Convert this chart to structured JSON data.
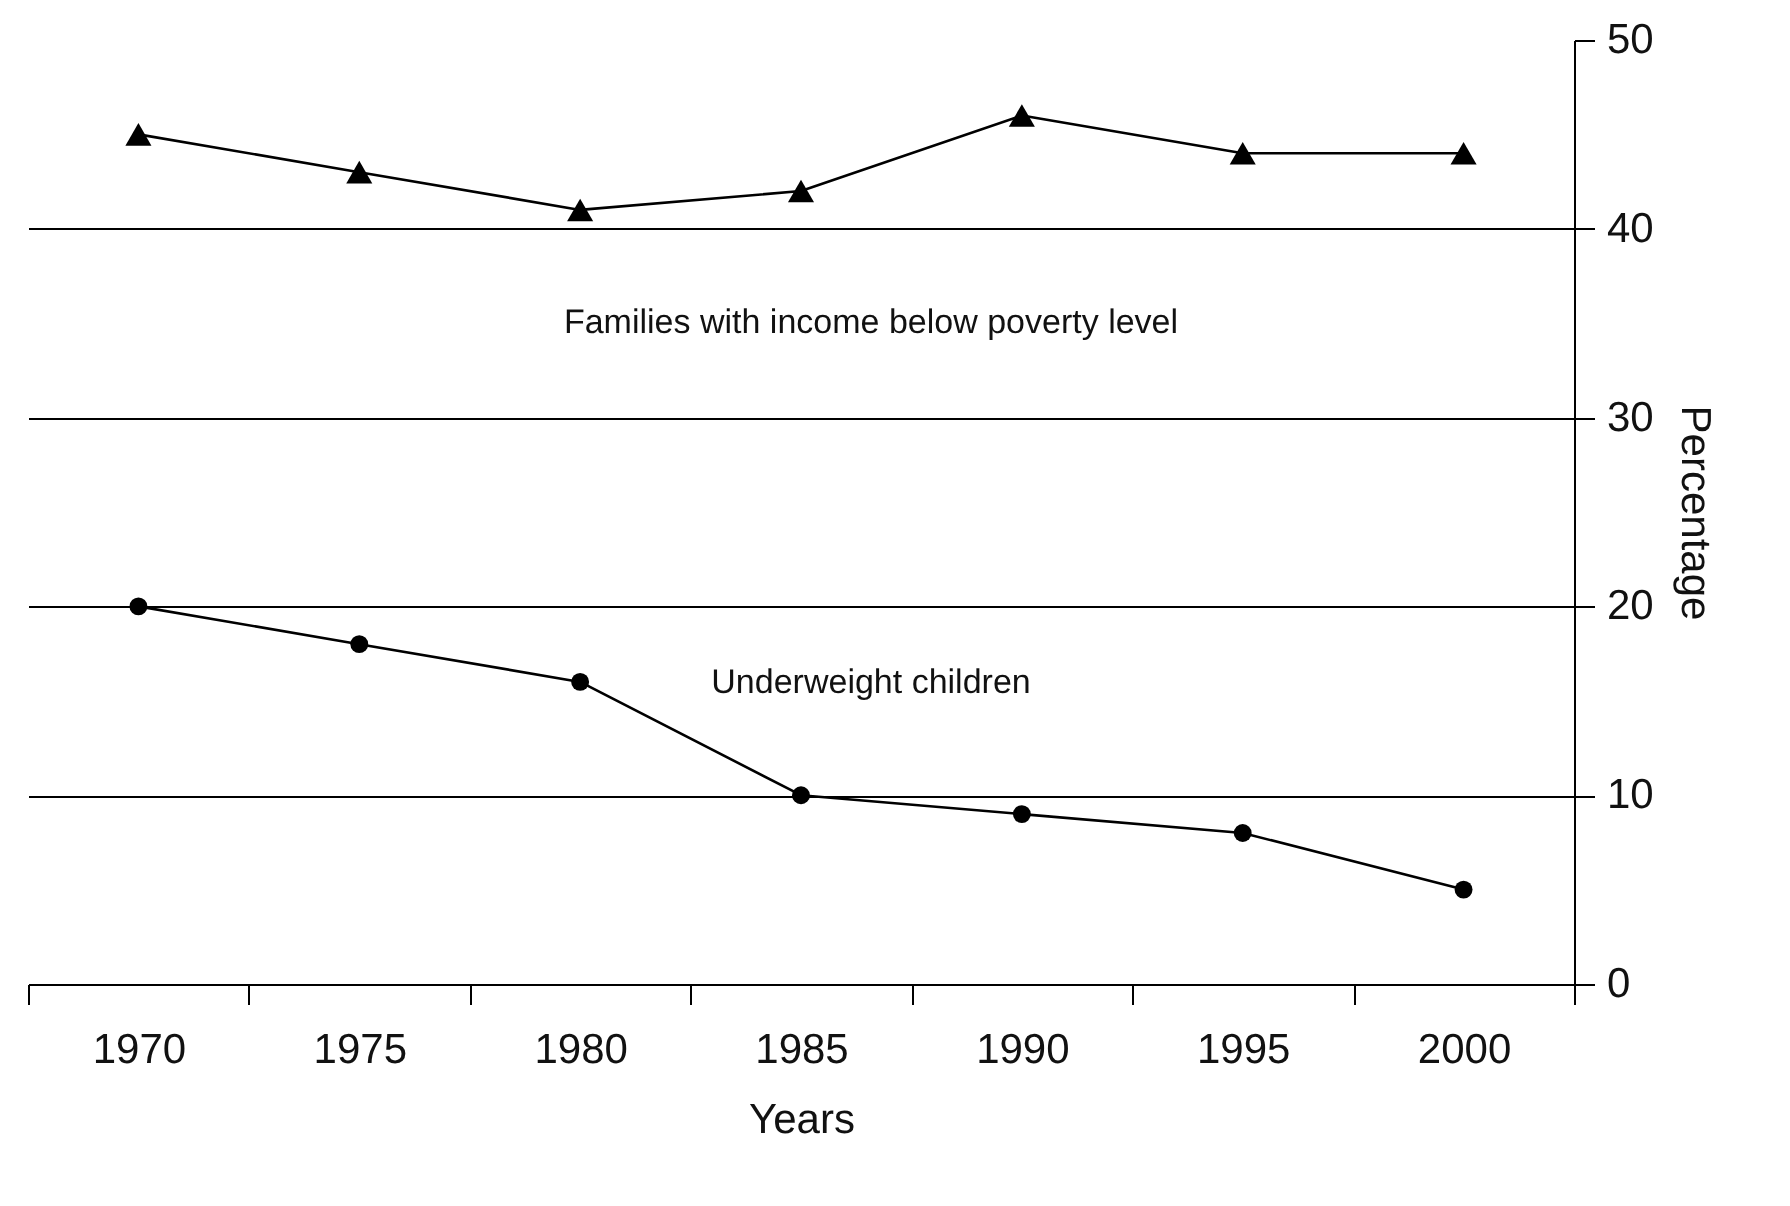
{
  "chart_data": {
    "type": "line",
    "xlabel": "Years",
    "ylabel": "Percentage",
    "categories": [
      "1970",
      "1975",
      "1980",
      "1985",
      "1990",
      "1995",
      "2000"
    ],
    "series": [
      {
        "name": "Families with income below poverty level",
        "color": "#000000",
        "marker": "triangle",
        "values": [
          45,
          43,
          41,
          42,
          46,
          44,
          44
        ]
      },
      {
        "name": "Underweight children",
        "color": "#000000",
        "marker": "circle",
        "values": [
          20,
          18,
          16,
          10,
          9,
          8,
          5
        ]
      }
    ],
    "ylim": [
      0,
      50
    ],
    "yticks": [
      0,
      10,
      20,
      30,
      40,
      50
    ],
    "grid": "y"
  }
}
